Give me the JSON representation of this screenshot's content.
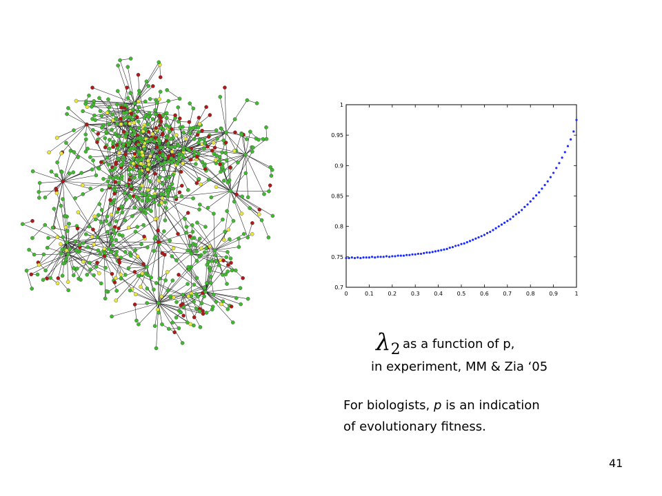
{
  "network": {
    "colors": {
      "green": "#3fba2e",
      "yellow": "#e8e83c",
      "red": "#b01818",
      "edge": "#2b2b2b",
      "outline": "#444444"
    }
  },
  "chart_data": {
    "type": "scatter",
    "xlim": [
      0,
      1
    ],
    "ylim": [
      0.7,
      1
    ],
    "x_ticks": [
      "0",
      "0.1",
      "0.2",
      "0.3",
      "0.4",
      "0.5",
      "0.6",
      "0.7",
      "0.8",
      "0.9",
      "1"
    ],
    "y_ticks": [
      "0.7",
      "0.75",
      "0.8",
      "0.85",
      "0.9",
      "0.95",
      "1"
    ],
    "marker_color": "#1a2cff",
    "series": [
      {
        "x": [
          0.0,
          0.0125,
          0.025,
          0.0375,
          0.05,
          0.0625,
          0.075,
          0.0875,
          0.1,
          0.1125,
          0.125,
          0.1375,
          0.15,
          0.1625,
          0.175,
          0.1875,
          0.2,
          0.2125,
          0.225,
          0.2375,
          0.25,
          0.2625,
          0.275,
          0.2875,
          0.3,
          0.3125,
          0.325,
          0.3375,
          0.35,
          0.3625,
          0.375,
          0.3875,
          0.4,
          0.4125,
          0.425,
          0.4375,
          0.45,
          0.4625,
          0.475,
          0.4875,
          0.5,
          0.5125,
          0.525,
          0.5375,
          0.55,
          0.5625,
          0.575,
          0.5875,
          0.6,
          0.6125,
          0.625,
          0.6375,
          0.65,
          0.6625,
          0.675,
          0.6875,
          0.7,
          0.7125,
          0.725,
          0.7375,
          0.75,
          0.7625,
          0.775,
          0.7875,
          0.8,
          0.8125,
          0.825,
          0.8375,
          0.85,
          0.8625,
          0.875,
          0.8875,
          0.9,
          0.9125,
          0.925,
          0.9375,
          0.95,
          0.9625,
          0.975,
          0.9875,
          1.0
        ],
        "y": [
          0.748,
          0.748,
          0.749,
          0.748,
          0.749,
          0.748,
          0.749,
          0.749,
          0.749,
          0.75,
          0.749,
          0.75,
          0.75,
          0.75,
          0.751,
          0.75,
          0.751,
          0.751,
          0.752,
          0.752,
          0.752,
          0.753,
          0.753,
          0.754,
          0.754,
          0.755,
          0.755,
          0.756,
          0.757,
          0.757,
          0.758,
          0.759,
          0.76,
          0.761,
          0.762,
          0.763,
          0.765,
          0.766,
          0.768,
          0.769,
          0.771,
          0.772,
          0.774,
          0.776,
          0.778,
          0.78,
          0.782,
          0.784,
          0.786,
          0.789,
          0.791,
          0.794,
          0.797,
          0.8,
          0.803,
          0.806,
          0.809,
          0.812,
          0.816,
          0.82,
          0.823,
          0.827,
          0.832,
          0.836,
          0.841,
          0.846,
          0.851,
          0.856,
          0.862,
          0.868,
          0.874,
          0.881,
          0.888,
          0.896,
          0.904,
          0.913,
          0.922,
          0.932,
          0.943,
          0.956,
          0.975
        ]
      }
    ]
  },
  "caption": {
    "lambda_symbol": "λ",
    "lambda_sub": "2",
    "line1": "as a function of p,",
    "line2": "in experiment, MM & Zia ‘05",
    "line3_before": "For biologists, ",
    "line3_italic": "p",
    "line3_after": " is an indication",
    "line4": "of evolutionary fitness."
  },
  "page_number": "41"
}
